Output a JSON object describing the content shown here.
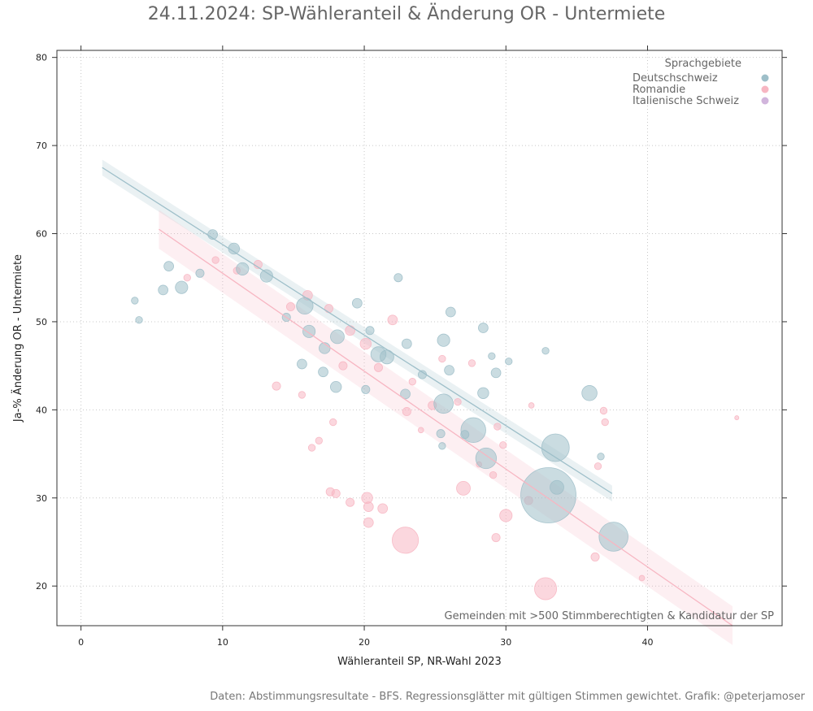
{
  "chart_data": {
    "type": "scatter",
    "title": "24.11.2024: SP-Wähleranteil & Änderung OR - Untermiete",
    "xlabel": "Wähleranteil SP, NR-Wahl 2023",
    "ylabel": "Ja-% Änderung OR - Untermiete",
    "xlim": [
      -1.7,
      49.5
    ],
    "ylim": [
      15.5,
      80.8
    ],
    "xticks": [
      0,
      10,
      20,
      30,
      40
    ],
    "yticks": [
      20,
      30,
      40,
      50,
      60,
      70,
      80
    ],
    "grid": true,
    "legend": {
      "title": "Sprachgebiete",
      "position": "top-right",
      "entries": [
        {
          "label": "Deutschschweiz",
          "color": "#9ebfc9"
        },
        {
          "label": "Romandie",
          "color": "#f7b6c2"
        },
        {
          "label": "Italienische Schweiz",
          "color": "#d1b5dc"
        }
      ]
    },
    "annotation": "Gemeinden mit >500 Stimmberechtigten & Kandidatur der SP",
    "caption": "Daten: Abstimmungsresultate - BFS. Regressionsglätter mit gültigen Stimmen gewichtet. Grafik: @peterjamoser",
    "regression": [
      {
        "series": "Deutschschweiz",
        "x": [
          1.5,
          37.5
        ],
        "y": [
          67.5,
          30.5
        ],
        "band": 0.9,
        "color": "#9ebfc9"
      },
      {
        "series": "Romandie",
        "x": [
          5.5,
          46.0
        ],
        "y": [
          60.5,
          15.5
        ],
        "band": 2.2,
        "color": "#f7b6c2"
      }
    ],
    "series": [
      {
        "name": "Deutschschweiz",
        "color": "#9ebfc9",
        "points": [
          {
            "x": 33.0,
            "y": 30.3,
            "size": 40
          },
          {
            "x": 33.5,
            "y": 35.7,
            "size": 20
          },
          {
            "x": 37.6,
            "y": 25.6,
            "size": 21
          },
          {
            "x": 28.6,
            "y": 34.5,
            "size": 15
          },
          {
            "x": 27.7,
            "y": 37.7,
            "size": 18
          },
          {
            "x": 25.6,
            "y": 40.7,
            "size": 14
          },
          {
            "x": 35.9,
            "y": 41.9,
            "size": 11
          },
          {
            "x": 33.6,
            "y": 31.2,
            "size": 10
          },
          {
            "x": 21.0,
            "y": 46.3,
            "size": 11
          },
          {
            "x": 21.6,
            "y": 46.0,
            "size": 10
          },
          {
            "x": 18.1,
            "y": 48.3,
            "size": 10
          },
          {
            "x": 25.6,
            "y": 47.9,
            "size": 9
          },
          {
            "x": 17.2,
            "y": 47.0,
            "size": 8
          },
          {
            "x": 15.8,
            "y": 51.8,
            "size": 12
          },
          {
            "x": 16.1,
            "y": 48.9,
            "size": 9
          },
          {
            "x": 13.1,
            "y": 55.2,
            "size": 9
          },
          {
            "x": 7.1,
            "y": 53.9,
            "size": 9
          },
          {
            "x": 5.8,
            "y": 53.6,
            "size": 7
          },
          {
            "x": 10.8,
            "y": 58.3,
            "size": 8
          },
          {
            "x": 11.4,
            "y": 56.0,
            "size": 9
          },
          {
            "x": 9.3,
            "y": 59.9,
            "size": 7
          },
          {
            "x": 18.0,
            "y": 42.6,
            "size": 8
          },
          {
            "x": 17.1,
            "y": 44.3,
            "size": 7
          },
          {
            "x": 15.6,
            "y": 45.2,
            "size": 7
          },
          {
            "x": 26.1,
            "y": 51.1,
            "size": 7
          },
          {
            "x": 28.4,
            "y": 49.3,
            "size": 7
          },
          {
            "x": 29.3,
            "y": 44.2,
            "size": 7
          },
          {
            "x": 28.4,
            "y": 41.9,
            "size": 8
          },
          {
            "x": 26.0,
            "y": 44.5,
            "size": 7
          },
          {
            "x": 22.9,
            "y": 41.8,
            "size": 7
          },
          {
            "x": 25.4,
            "y": 37.3,
            "size": 6
          },
          {
            "x": 23.0,
            "y": 47.5,
            "size": 7
          },
          {
            "x": 24.1,
            "y": 44.0,
            "size": 6
          },
          {
            "x": 20.1,
            "y": 42.3,
            "size": 6
          },
          {
            "x": 6.2,
            "y": 56.3,
            "size": 7
          },
          {
            "x": 8.4,
            "y": 55.5,
            "size": 6
          },
          {
            "x": 14.5,
            "y": 50.5,
            "size": 6
          },
          {
            "x": 19.5,
            "y": 52.1,
            "size": 7
          },
          {
            "x": 22.4,
            "y": 55.0,
            "size": 6
          },
          {
            "x": 20.4,
            "y": 49.0,
            "size": 6
          },
          {
            "x": 4.1,
            "y": 50.2,
            "size": 5
          },
          {
            "x": 3.8,
            "y": 52.4,
            "size": 5
          },
          {
            "x": 32.8,
            "y": 46.7,
            "size": 5
          },
          {
            "x": 36.7,
            "y": 34.7,
            "size": 5
          },
          {
            "x": 27.1,
            "y": 37.2,
            "size": 6
          },
          {
            "x": 25.5,
            "y": 35.9,
            "size": 5
          },
          {
            "x": 30.2,
            "y": 45.5,
            "size": 5
          },
          {
            "x": 29.0,
            "y": 46.1,
            "size": 5
          }
        ]
      },
      {
        "name": "Romandie",
        "color": "#f7b6c2",
        "points": [
          {
            "x": 22.9,
            "y": 25.2,
            "size": 19
          },
          {
            "x": 32.8,
            "y": 19.7,
            "size": 16
          },
          {
            "x": 27.0,
            "y": 31.1,
            "size": 10
          },
          {
            "x": 30.0,
            "y": 28.0,
            "size": 9
          },
          {
            "x": 20.2,
            "y": 30.0,
            "size": 8
          },
          {
            "x": 21.3,
            "y": 28.8,
            "size": 7
          },
          {
            "x": 20.3,
            "y": 27.2,
            "size": 7
          },
          {
            "x": 20.3,
            "y": 29.0,
            "size": 7
          },
          {
            "x": 17.6,
            "y": 30.7,
            "size": 6
          },
          {
            "x": 18.0,
            "y": 30.5,
            "size": 6
          },
          {
            "x": 19.0,
            "y": 29.5,
            "size": 6
          },
          {
            "x": 29.3,
            "y": 25.5,
            "size": 6
          },
          {
            "x": 36.3,
            "y": 23.3,
            "size": 6
          },
          {
            "x": 31.6,
            "y": 29.7,
            "size": 6
          },
          {
            "x": 23.0,
            "y": 39.8,
            "size": 6
          },
          {
            "x": 24.8,
            "y": 40.5,
            "size": 6
          },
          {
            "x": 21.0,
            "y": 44.8,
            "size": 6
          },
          {
            "x": 20.1,
            "y": 47.5,
            "size": 8
          },
          {
            "x": 22.0,
            "y": 50.2,
            "size": 7
          },
          {
            "x": 19.0,
            "y": 49.0,
            "size": 7
          },
          {
            "x": 17.5,
            "y": 51.5,
            "size": 6
          },
          {
            "x": 16.0,
            "y": 53.0,
            "size": 7
          },
          {
            "x": 18.5,
            "y": 45.0,
            "size": 6
          },
          {
            "x": 13.8,
            "y": 42.7,
            "size": 6
          },
          {
            "x": 15.6,
            "y": 41.7,
            "size": 5
          },
          {
            "x": 17.8,
            "y": 38.6,
            "size": 5
          },
          {
            "x": 16.3,
            "y": 35.7,
            "size": 5
          },
          {
            "x": 16.8,
            "y": 36.5,
            "size": 5
          },
          {
            "x": 27.6,
            "y": 45.3,
            "size": 5
          },
          {
            "x": 29.4,
            "y": 38.1,
            "size": 5
          },
          {
            "x": 29.8,
            "y": 36.0,
            "size": 5
          },
          {
            "x": 36.9,
            "y": 39.9,
            "size": 5
          },
          {
            "x": 37.0,
            "y": 38.6,
            "size": 5
          },
          {
            "x": 36.5,
            "y": 33.6,
            "size": 5
          },
          {
            "x": 29.1,
            "y": 32.6,
            "size": 5
          },
          {
            "x": 39.6,
            "y": 20.9,
            "size": 4
          },
          {
            "x": 46.3,
            "y": 39.1,
            "size": 3
          },
          {
            "x": 12.5,
            "y": 56.5,
            "size": 6
          },
          {
            "x": 11.0,
            "y": 55.8,
            "size": 5
          },
          {
            "x": 9.5,
            "y": 57.0,
            "size": 5
          },
          {
            "x": 14.8,
            "y": 51.7,
            "size": 6
          },
          {
            "x": 7.5,
            "y": 55.0,
            "size": 5
          },
          {
            "x": 25.5,
            "y": 45.8,
            "size": 5
          },
          {
            "x": 23.4,
            "y": 43.2,
            "size": 5
          },
          {
            "x": 26.6,
            "y": 40.9,
            "size": 5
          },
          {
            "x": 31.8,
            "y": 40.5,
            "size": 4
          },
          {
            "x": 24.0,
            "y": 37.7,
            "size": 4
          },
          {
            "x": 28.1,
            "y": 33.8,
            "size": 4
          }
        ]
      }
    ]
  }
}
